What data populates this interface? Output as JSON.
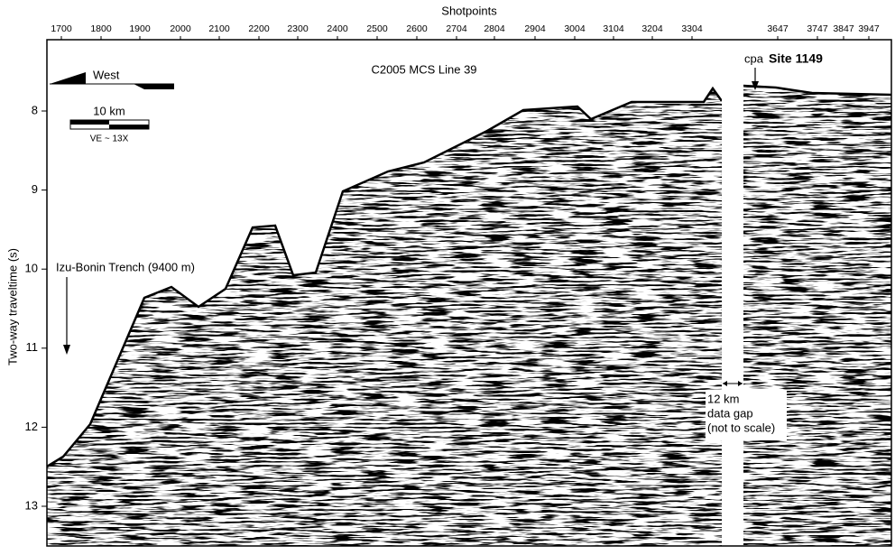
{
  "title": "C2005 MCS Line 39",
  "x_axis": {
    "label": "Shotpoints",
    "ticks": [
      "1700",
      "1800",
      "1900",
      "2000",
      "2100",
      "2200",
      "2300",
      "2400",
      "2500",
      "2600",
      "2704",
      "2804",
      "2904",
      "3004",
      "3104",
      "3204",
      "3304",
      "3647",
      "3747",
      "3847",
      "3947"
    ]
  },
  "y_axis": {
    "label": "Two-way traveltime (s)",
    "ticks": [
      "8",
      "9",
      "10",
      "11",
      "12",
      "13"
    ]
  },
  "direction": "West",
  "scale_bar": {
    "label": "10 km",
    "note": "VE ~ 13X"
  },
  "annotations": {
    "trench": "Izu-Bonin Trench (9400 m)",
    "site_prefix": "cpa",
    "site": "Site 1149",
    "gap": [
      "12 km",
      "data gap",
      "(not to scale)"
    ]
  }
}
